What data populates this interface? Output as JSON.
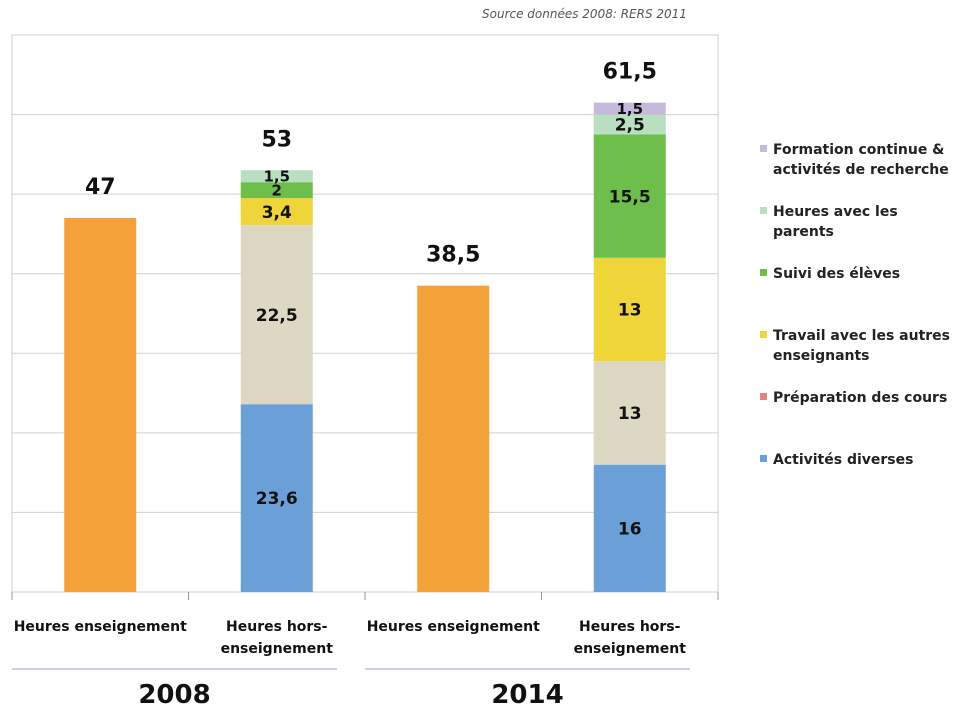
{
  "source_note": "Source données 2008: RERS 2011",
  "colors": {
    "orange": "#F5A13A",
    "formation": "#C5B9DC",
    "parents": "#B9DEC0",
    "suivi": "#6DBE4B",
    "travail": "#EFD53A",
    "preparation": "#DDD8C3",
    "activites": "#6A9FD8",
    "preparation_legend": "#E28581",
    "grid": "#D0D0D0",
    "group_line": "#9999CC"
  },
  "chart_data": {
    "type": "bar",
    "stacked": true,
    "ylim": [
      0,
      70
    ],
    "grid": true,
    "legend_position": "right",
    "groups": [
      {
        "label": "2008",
        "bars": [
          {
            "category": "Heures enseignement",
            "total_label": "47",
            "segments": [
              {
                "series": "teaching",
                "value": 47,
                "label": ""
              }
            ]
          },
          {
            "category": "Heures hors-enseignement",
            "total_label": "53",
            "segments": [
              {
                "series": "Activités diverses",
                "value": 23.6,
                "label": "23,6"
              },
              {
                "series": "Préparation des cours",
                "value": 22.5,
                "label": "22,5"
              },
              {
                "series": "Travail avec les autres enseignants",
                "value": 3.4,
                "label": "3,4"
              },
              {
                "series": "Suivi des élèves",
                "value": 2,
                "label": "2"
              },
              {
                "series": "Heures avec les parents",
                "value": 1.5,
                "label": "1,5"
              }
            ]
          }
        ]
      },
      {
        "label": "2014",
        "bars": [
          {
            "category": "Heures enseignement",
            "total_label": "38,5",
            "segments": [
              {
                "series": "teaching",
                "value": 38.5,
                "label": ""
              }
            ]
          },
          {
            "category": "Heures hors-enseignement",
            "total_label": "61,5",
            "segments": [
              {
                "series": "Activités diverses",
                "value": 16,
                "label": "16"
              },
              {
                "series": "Préparation des cours",
                "value": 13,
                "label": "13"
              },
              {
                "series": "Travail avec les autres enseignants",
                "value": 13,
                "label": "13"
              },
              {
                "series": "Suivi des élèves",
                "value": 15.5,
                "label": "15,5"
              },
              {
                "series": "Heures avec les parents",
                "value": 2.5,
                "label": "2,5"
              },
              {
                "series": "Formation continue & activités de recherche",
                "value": 1.5,
                "label": "1,5"
              }
            ]
          }
        ]
      }
    ],
    "legend": [
      {
        "name": "Formation continue & activités de recherche",
        "color": "#C5B9DC"
      },
      {
        "name": "Heures avec les parents",
        "color": "#B9DEC0"
      },
      {
        "name": "Suivi des élèves",
        "color": "#6DBE4B"
      },
      {
        "name": "Travail avec les autres enseignants",
        "color": "#EFD53A"
      },
      {
        "name": "Préparation des cours",
        "color": "#E28581"
      },
      {
        "name": "Activités diverses",
        "color": "#6A9FD8"
      }
    ],
    "series_colors": {
      "teaching": "#F5A13A",
      "Activités diverses": "#6A9FD8",
      "Préparation des cours": "#DDD8C3",
      "Travail avec les autres enseignants": "#EFD53A",
      "Suivi des élèves": "#6DBE4B",
      "Heures avec les parents": "#B9DEC0",
      "Formation continue & activités de recherche": "#C5B9DC"
    }
  }
}
